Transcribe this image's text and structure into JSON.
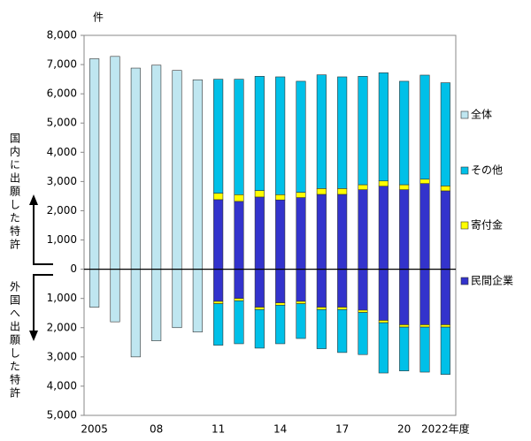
{
  "chart_data": {
    "type": "diverging_stacked_bar",
    "y_unit": "件",
    "upper_label": "国内に出願した特許",
    "lower_label": "外国へ出願した特許",
    "categories": [
      "2005",
      null,
      null,
      "08",
      null,
      null,
      "11",
      null,
      null,
      "14",
      null,
      null,
      "17",
      null,
      null,
      "20",
      null,
      "2022年度"
    ],
    "ylim": [
      -5000,
      8000
    ],
    "yticks": [
      {
        "value": 8000,
        "label": "8,000"
      },
      {
        "value": 7000,
        "label": "7,000"
      },
      {
        "value": 6000,
        "label": "6,000"
      },
      {
        "value": 5000,
        "label": "5,000"
      },
      {
        "value": 4000,
        "label": "4,000"
      },
      {
        "value": 3000,
        "label": "3,000"
      },
      {
        "value": 2000,
        "label": "2,000"
      },
      {
        "value": 1000,
        "label": "1,000"
      },
      0,
      {
        "value": -1000,
        "label": "1,000"
      },
      {
        "value": -2000,
        "label": "2,000"
      },
      {
        "value": -3000,
        "label": "3,000"
      },
      {
        "value": -4000,
        "label": "4,000"
      },
      {
        "value": -5000,
        "label": "5,000"
      }
    ],
    "series": [
      {
        "name": "全体",
        "color": "#bfe6f0",
        "values": [
          7200,
          7280,
          6880,
          6980,
          6800,
          6480,
          null,
          null,
          null,
          null,
          null,
          null,
          null,
          null,
          null,
          null,
          null,
          null
        ],
        "values_foreign": [
          -1300,
          -1800,
          -3000,
          -2450,
          -2000,
          -2150,
          null,
          null,
          null,
          null,
          null,
          null,
          null,
          null,
          null,
          null,
          null,
          null
        ]
      },
      {
        "name": "その他",
        "color": "#00c0e8",
        "values": [
          null,
          null,
          null,
          null,
          null,
          null,
          3900,
          3950,
          3910,
          4030,
          3800,
          3890,
          3820,
          3710,
          3700,
          3540,
          3560,
          3530
        ],
        "values_foreign": [
          null,
          null,
          null,
          null,
          null,
          null,
          -1420,
          -1470,
          -1320,
          -1320,
          -1190,
          -1340,
          -1470,
          -1440,
          -1720,
          -1500,
          -1540,
          -1620
        ]
      },
      {
        "name": "寄付金",
        "color": "#ffff00",
        "values": [
          null,
          null,
          null,
          null,
          null,
          null,
          220,
          230,
          220,
          180,
          180,
          200,
          200,
          170,
          180,
          170,
          150,
          170
        ],
        "values_foreign": [
          null,
          null,
          null,
          null,
          null,
          null,
          -80,
          -80,
          -80,
          -80,
          -80,
          -80,
          -80,
          -80,
          -80,
          -80,
          -80,
          -80
        ]
      },
      {
        "name": "民間企業",
        "color": "#3333cc",
        "values": [
          null,
          null,
          null,
          null,
          null,
          null,
          2380,
          2320,
          2470,
          2370,
          2450,
          2560,
          2560,
          2720,
          2840,
          2720,
          2930,
          2680
        ],
        "values_foreign": [
          null,
          null,
          null,
          null,
          null,
          null,
          -1100,
          -1000,
          -1300,
          -1150,
          -1100,
          -1300,
          -1300,
          -1400,
          -1750,
          -1900,
          -1900,
          -1900
        ]
      }
    ]
  }
}
